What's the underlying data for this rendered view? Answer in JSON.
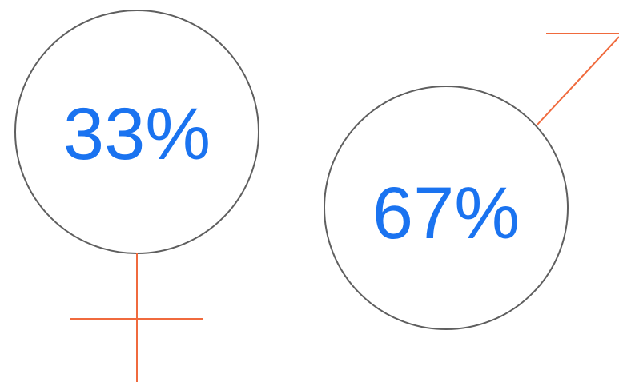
{
  "chart_data": {
    "type": "pictorial",
    "categories": [
      "female",
      "male"
    ],
    "values": [
      33,
      67
    ],
    "unit": "%",
    "labels": [
      "33%",
      "67%"
    ],
    "icons": [
      "female-symbol-icon",
      "male-symbol-icon"
    ],
    "colors": {
      "label": "#1a73f0",
      "ring": "#5f5f5f",
      "symbol": "#f06a3d"
    }
  }
}
